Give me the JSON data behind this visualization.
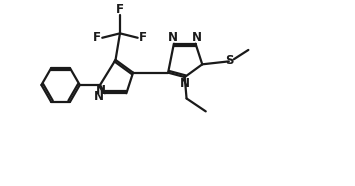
{
  "background": "#ffffff",
  "line_color": "#1a1a1a",
  "line_width": 1.6,
  "dbo": 0.042,
  "figsize": [
    3.55,
    1.86
  ],
  "dpi": 100,
  "font_size": 8.5,
  "font_size_s": 7.5,
  "xlim": [
    0,
    9.5
  ],
  "ylim": [
    0,
    5.0
  ]
}
